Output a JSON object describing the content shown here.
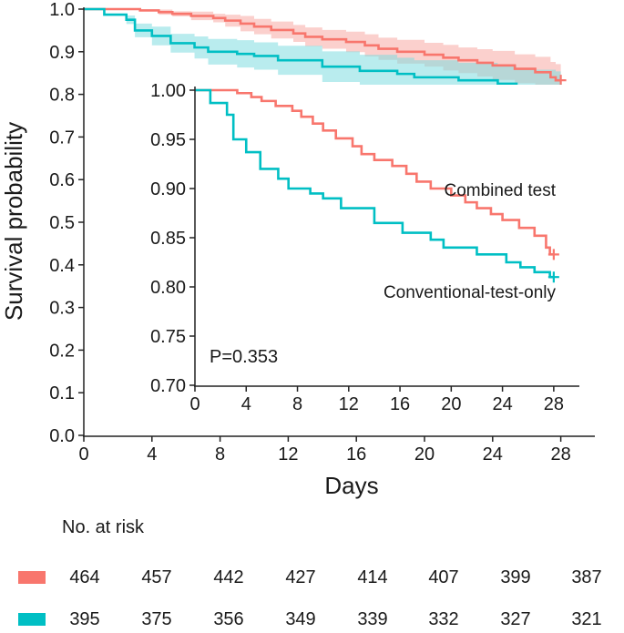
{
  "chart_data": {
    "type": "line",
    "subtype": "kaplan-meier",
    "title": "",
    "xlabel": "Days",
    "ylabel": "Survival probability",
    "xlim": [
      0,
      30
    ],
    "ylim": [
      0,
      1.0
    ],
    "xticks": [
      0,
      4,
      8,
      12,
      16,
      20,
      24,
      28
    ],
    "yticks": [
      0.0,
      0.1,
      0.2,
      0.3,
      0.4,
      0.5,
      0.6,
      0.7,
      0.8,
      0.9,
      1.0
    ],
    "confidence_bands": true,
    "series": [
      {
        "name": "Combined test",
        "color": "#F8766D",
        "band_color": "#F8A9A4",
        "censored_at": 28,
        "steps": [
          [
            0,
            1.0
          ],
          [
            3.3,
            0.997
          ],
          [
            4.4,
            0.993
          ],
          [
            5.2,
            0.989
          ],
          [
            6.3,
            0.984
          ],
          [
            7.6,
            0.979
          ],
          [
            8.3,
            0.973
          ],
          [
            9.2,
            0.966
          ],
          [
            10.0,
            0.959
          ],
          [
            11.0,
            0.951
          ],
          [
            12.3,
            0.943
          ],
          [
            13.0,
            0.935
          ],
          [
            14.0,
            0.929
          ],
          [
            15.4,
            0.923
          ],
          [
            16.5,
            0.915
          ],
          [
            17.3,
            0.907
          ],
          [
            18.4,
            0.9
          ],
          [
            20.0,
            0.893
          ],
          [
            21.1,
            0.886
          ],
          [
            22.0,
            0.88
          ],
          [
            23.1,
            0.874
          ],
          [
            24.0,
            0.868
          ],
          [
            25.3,
            0.86
          ],
          [
            26.5,
            0.852
          ],
          [
            27.4,
            0.84
          ],
          [
            27.7,
            0.833
          ],
          [
            28.0,
            0.833
          ]
        ],
        "band_halfwidth": [
          0.0,
          0.006,
          0.01,
          0.014,
          0.018,
          0.02,
          0.022,
          0.024,
          0.026,
          0.028,
          0.03,
          0.032,
          0.034,
          0.036,
          0.038,
          0.04
        ]
      },
      {
        "name": "Conventional-test-only",
        "color": "#00BFC4",
        "band_color": "#7FDDE0",
        "censored_at": 28,
        "steps": [
          [
            0,
            1.0
          ],
          [
            1.2,
            0.987
          ],
          [
            2.5,
            0.975
          ],
          [
            3.0,
            0.95
          ],
          [
            4.0,
            0.937
          ],
          [
            5.1,
            0.92
          ],
          [
            6.5,
            0.91
          ],
          [
            7.3,
            0.9
          ],
          [
            9.0,
            0.895
          ],
          [
            10.0,
            0.89
          ],
          [
            11.4,
            0.88
          ],
          [
            14.0,
            0.865
          ],
          [
            16.2,
            0.855
          ],
          [
            18.4,
            0.848
          ],
          [
            19.4,
            0.84
          ],
          [
            22.0,
            0.833
          ],
          [
            24.3,
            0.825
          ],
          [
            25.4,
            0.82
          ],
          [
            26.5,
            0.815
          ],
          [
            27.7,
            0.81
          ],
          [
            28.0,
            0.81
          ]
        ],
        "band_halfwidth": [
          0.0,
          0.01,
          0.016,
          0.022,
          0.026,
          0.03,
          0.032,
          0.034,
          0.036,
          0.038,
          0.04,
          0.041,
          0.042,
          0.043,
          0.044,
          0.045
        ]
      }
    ],
    "inset": {
      "xlim": [
        0,
        30
      ],
      "ylim": [
        0.7,
        1.0
      ],
      "xticks": [
        0,
        4,
        8,
        12,
        16,
        20,
        24,
        28
      ],
      "yticks": [
        "0.70",
        "0.75",
        "0.80",
        "0.85",
        "0.90",
        "0.95",
        "1.00"
      ],
      "annotations": {
        "p_value": "P=0.353",
        "label_combined": "Combined test",
        "label_conventional": "Conventional-test-only"
      }
    },
    "risk_table": {
      "title": "No. at risk",
      "rows": [
        {
          "name": "Combined test",
          "color": "#F8766D",
          "values": [
            464,
            457,
            442,
            427,
            414,
            407,
            399,
            387
          ]
        },
        {
          "name": "Conventional-test-only",
          "color": "#00BFC4",
          "values": [
            395,
            375,
            356,
            349,
            339,
            332,
            327,
            321
          ]
        }
      ]
    }
  }
}
